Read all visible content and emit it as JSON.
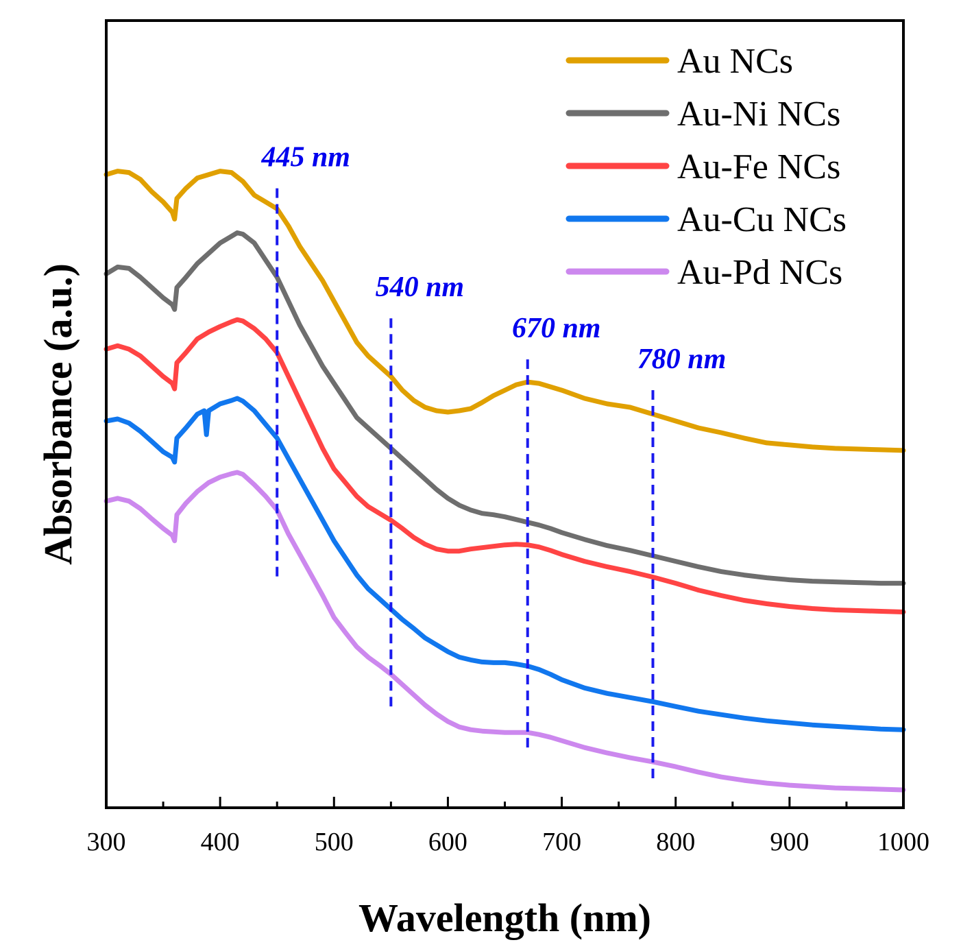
{
  "chart_data": {
    "type": "line",
    "title": "",
    "xlabel": "Wavelength (nm)",
    "ylabel": "Absorbance (a.u.)",
    "xlim": [
      300,
      1000
    ],
    "ylim": [
      0,
      1150
    ],
    "xticks": [
      "300",
      "400",
      "500",
      "600",
      "700",
      "800",
      "900",
      "1000"
    ],
    "yticks": [],
    "grid": false,
    "legend_position": "top-right",
    "series": [
      {
        "name": "Au NCs",
        "color": "#e0a000",
        "x": [
          300,
          310,
          320,
          330,
          340,
          350,
          358,
          360,
          362,
          370,
          380,
          390,
          400,
          410,
          420,
          430,
          440,
          450,
          460,
          470,
          480,
          490,
          500,
          510,
          520,
          530,
          540,
          550,
          560,
          570,
          580,
          590,
          600,
          610,
          620,
          630,
          640,
          650,
          660,
          670,
          680,
          690,
          700,
          720,
          740,
          760,
          780,
          800,
          820,
          840,
          860,
          880,
          900,
          920,
          940,
          960,
          980,
          1000
        ],
        "y": [
          925,
          930,
          928,
          918,
          900,
          885,
          870,
          860,
          890,
          905,
          920,
          925,
          930,
          928,
          915,
          895,
          885,
          875,
          850,
          820,
          795,
          770,
          740,
          710,
          680,
          660,
          645,
          630,
          610,
          595,
          585,
          580,
          578,
          580,
          583,
          592,
          602,
          610,
          618,
          622,
          620,
          615,
          610,
          598,
          590,
          585,
          575,
          565,
          555,
          548,
          540,
          533,
          530,
          527,
          525,
          524,
          523,
          522
        ]
      },
      {
        "name": "Au-Ni NCs",
        "color": "#6e6e6e",
        "x": [
          300,
          310,
          320,
          330,
          340,
          350,
          358,
          360,
          362,
          370,
          380,
          390,
          400,
          410,
          415,
          420,
          430,
          440,
          450,
          460,
          470,
          480,
          490,
          500,
          510,
          520,
          530,
          540,
          550,
          560,
          570,
          580,
          590,
          600,
          610,
          620,
          630,
          640,
          650,
          660,
          670,
          680,
          690,
          700,
          720,
          740,
          760,
          780,
          800,
          820,
          840,
          860,
          880,
          900,
          920,
          940,
          960,
          980,
          1000
        ],
        "y": [
          780,
          790,
          788,
          775,
          760,
          745,
          735,
          728,
          760,
          775,
          795,
          810,
          825,
          835,
          840,
          838,
          825,
          800,
          775,
          740,
          705,
          675,
          645,
          620,
          595,
          570,
          555,
          540,
          525,
          510,
          495,
          480,
          465,
          452,
          442,
          435,
          430,
          428,
          425,
          421,
          417,
          413,
          408,
          402,
          392,
          383,
          376,
          368,
          360,
          352,
          345,
          340,
          336,
          333,
          331,
          330,
          329,
          328,
          328
        ]
      },
      {
        "name": "Au-Fe NCs",
        "color": "#ff4444",
        "x": [
          300,
          310,
          320,
          330,
          340,
          350,
          358,
          360,
          362,
          370,
          380,
          390,
          400,
          410,
          415,
          420,
          430,
          440,
          450,
          460,
          470,
          480,
          490,
          500,
          510,
          520,
          530,
          540,
          550,
          560,
          570,
          580,
          590,
          600,
          610,
          620,
          630,
          640,
          650,
          660,
          670,
          680,
          690,
          700,
          720,
          740,
          760,
          780,
          800,
          820,
          840,
          860,
          880,
          900,
          920,
          940,
          960,
          980,
          1000
        ],
        "y": [
          670,
          675,
          670,
          660,
          645,
          630,
          620,
          612,
          650,
          665,
          685,
          695,
          703,
          710,
          713,
          711,
          700,
          685,
          665,
          630,
          595,
          560,
          525,
          495,
          475,
          455,
          440,
          430,
          420,
          408,
          395,
          385,
          378,
          375,
          375,
          378,
          380,
          382,
          384,
          385,
          384,
          381,
          376,
          370,
          360,
          352,
          345,
          337,
          328,
          318,
          310,
          303,
          298,
          294,
          291,
          289,
          288,
          287,
          286
        ]
      },
      {
        "name": "Au-Cu NCs",
        "color": "#1177ee",
        "x": [
          300,
          310,
          320,
          330,
          340,
          350,
          358,
          360,
          362,
          370,
          380,
          386,
          388,
          390,
          400,
          410,
          415,
          420,
          430,
          440,
          450,
          460,
          470,
          480,
          490,
          500,
          510,
          520,
          530,
          540,
          550,
          560,
          570,
          580,
          590,
          600,
          610,
          620,
          630,
          640,
          650,
          660,
          670,
          680,
          690,
          700,
          720,
          740,
          760,
          780,
          800,
          820,
          840,
          860,
          880,
          900,
          920,
          940,
          960,
          980,
          1000
        ],
        "y": [
          565,
          568,
          562,
          550,
          535,
          520,
          512,
          505,
          540,
          555,
          575,
          580,
          545,
          580,
          590,
          595,
          598,
          594,
          580,
          560,
          540,
          510,
          480,
          450,
          420,
          390,
          365,
          340,
          320,
          305,
          290,
          275,
          262,
          248,
          238,
          228,
          220,
          216,
          213,
          212,
          212,
          210,
          207,
          202,
          195,
          187,
          175,
          167,
          161,
          155,
          148,
          141,
          136,
          131,
          127,
          124,
          121,
          119,
          117,
          115,
          114
        ]
      },
      {
        "name": "Au-Pd NCs",
        "color": "#cc88ee",
        "x": [
          300,
          310,
          320,
          330,
          340,
          350,
          358,
          360,
          362,
          370,
          380,
          390,
          400,
          410,
          415,
          420,
          430,
          440,
          450,
          460,
          470,
          480,
          490,
          500,
          510,
          520,
          530,
          540,
          550,
          560,
          570,
          580,
          590,
          600,
          610,
          620,
          630,
          640,
          650,
          660,
          670,
          680,
          690,
          700,
          720,
          740,
          760,
          780,
          800,
          820,
          840,
          860,
          880,
          900,
          920,
          940,
          960,
          980,
          1000
        ],
        "y": [
          448,
          452,
          448,
          437,
          422,
          408,
          398,
          390,
          428,
          445,
          462,
          475,
          483,
          488,
          490,
          487,
          472,
          455,
          435,
          400,
          370,
          340,
          310,
          278,
          256,
          235,
          220,
          208,
          195,
          180,
          165,
          150,
          137,
          126,
          118,
          114,
          112,
          111,
          110,
          110,
          110,
          107,
          103,
          98,
          88,
          80,
          73,
          67,
          60,
          52,
          45,
          40,
          36,
          33,
          31,
          29,
          28,
          27,
          26
        ]
      }
    ],
    "annotations": [
      {
        "label": "445 nm",
        "x": 450,
        "y_top": 905,
        "y_bottom": 335
      },
      {
        "label": "540 nm",
        "x": 550,
        "y_top": 715,
        "y_bottom": 142
      },
      {
        "label": "670 nm",
        "x": 670,
        "y_top": 655,
        "y_bottom": 85
      },
      {
        "label": "780 nm",
        "x": 780,
        "y_top": 610,
        "y_bottom": 40
      }
    ]
  }
}
